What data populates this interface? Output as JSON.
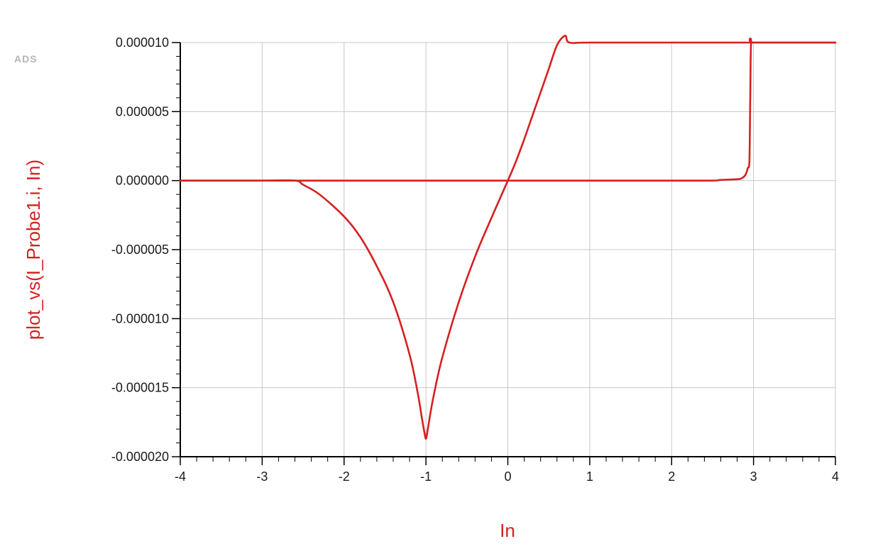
{
  "watermark": "ADS",
  "colors": {
    "trace": "#d62020",
    "axis_title": "#d62020",
    "grid": "#c8c8c8",
    "axis": "#000000"
  },
  "chart_data": {
    "type": "line",
    "xlabel": "In",
    "ylabel": "plot_vs(I_Probe1.i, In)",
    "xlim": [
      -4,
      4
    ],
    "ylim": [
      -2e-05,
      1e-05
    ],
    "grid": true,
    "xticks": [
      {
        "value": -4,
        "label": "-4"
      },
      {
        "value": -3,
        "label": "-3"
      },
      {
        "value": -2,
        "label": "-2"
      },
      {
        "value": -1,
        "label": "-1"
      },
      {
        "value": 0,
        "label": "0"
      },
      {
        "value": 1,
        "label": "1"
      },
      {
        "value": 2,
        "label": "2"
      },
      {
        "value": 3,
        "label": "3"
      },
      {
        "value": 4,
        "label": "4"
      }
    ],
    "yticks": [
      {
        "value": 1e-05,
        "label": "0.000010"
      },
      {
        "value": 5e-06,
        "label": "0.000005"
      },
      {
        "value": 0.0,
        "label": "0.000000"
      },
      {
        "value": -5e-06,
        "label": "-0.000005"
      },
      {
        "value": -1e-05,
        "label": "-0.000010"
      },
      {
        "value": -1.5e-05,
        "label": "-0.000015"
      },
      {
        "value": -2e-05,
        "label": "-0.000020"
      }
    ],
    "series": [
      {
        "x": [
          -4.0,
          -3.5,
          -3.0,
          -2.6,
          -2.5,
          -2.3,
          -2.0,
          -1.8,
          -1.6,
          -1.4,
          -1.2,
          -1.1,
          -1.05,
          -1.02,
          -1.0,
          -0.98,
          -0.95,
          -0.9,
          -0.8,
          -0.6,
          -0.4,
          -0.2,
          0.0,
          0.1,
          0.2,
          0.3,
          0.4,
          0.5,
          0.6,
          0.7,
          0.75,
          1.0,
          2.0,
          3.0,
          4.0
        ],
        "y": [
          0.0,
          0.0,
          0.0,
          0.0,
          -3e-07,
          -1e-06,
          -2.6e-06,
          -4.1e-06,
          -6.2e-06,
          -8.8e-06,
          -1.26e-05,
          -1.54e-05,
          -1.72e-05,
          -1.82e-05,
          -1.87e-05,
          -1.81e-05,
          -1.7e-05,
          -1.54e-05,
          -1.28e-05,
          -8.8e-06,
          -5.5e-06,
          -2.7e-06,
          0.0,
          1.4e-06,
          3e-06,
          4.7e-06,
          6.4e-06,
          8.1e-06,
          9.8e-06,
          1.05e-05,
          1e-05,
          1e-05,
          1e-05,
          1e-05,
          1e-05
        ]
      },
      {
        "x": [
          -4.0,
          -3.0,
          -2.0,
          -1.0,
          0.0,
          1.0,
          2.0,
          2.5,
          2.6,
          2.8,
          2.85,
          2.9,
          2.93,
          2.95,
          2.96,
          2.97,
          3.0,
          3.5,
          4.0
        ],
        "y": [
          0.0,
          0.0,
          0.0,
          0.0,
          0.0,
          0.0,
          0.0,
          0.0,
          5e-08,
          1e-07,
          1.5e-07,
          4e-07,
          9e-07,
          1.5e-06,
          6e-06,
          1e-05,
          1e-05,
          1e-05,
          1e-05
        ]
      }
    ]
  }
}
